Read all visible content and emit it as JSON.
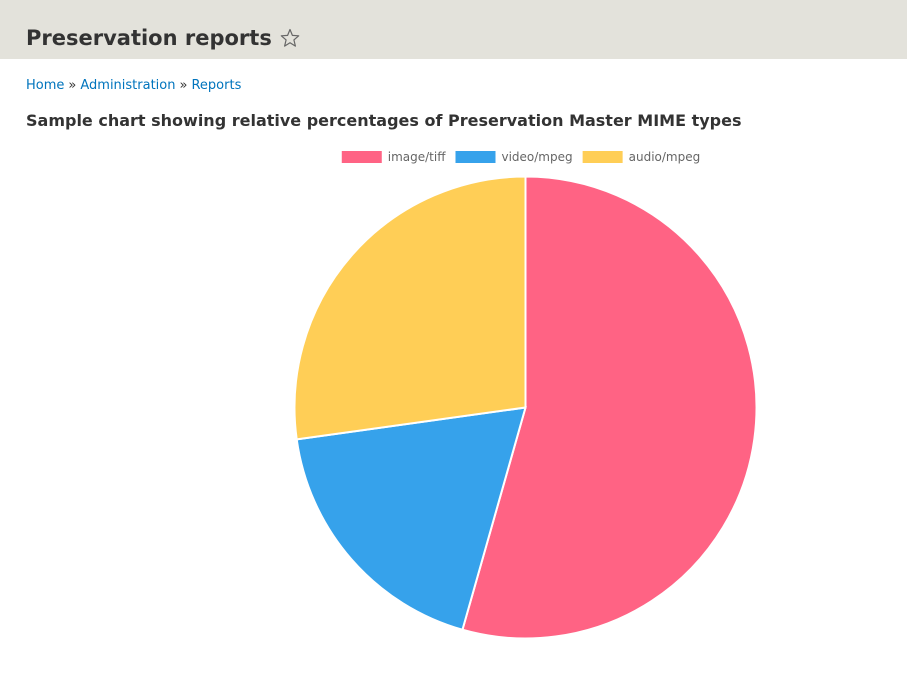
{
  "header": {
    "title": "Preservation reports",
    "star_icon": "star-outline-icon"
  },
  "breadcrumb": {
    "items": [
      "Home",
      "Administration",
      "Reports"
    ],
    "separator": "»"
  },
  "main": {
    "chart_heading": "Sample chart showing relative percentages of Preservation Master MIME types"
  },
  "chart_data": {
    "type": "pie",
    "title": "",
    "categories": [
      "image/tiff",
      "video/mpeg",
      "audio/mpeg"
    ],
    "values": [
      54.4,
      18.4,
      27.2
    ],
    "colors": [
      "#ff6384",
      "#36a2eb",
      "#ffce56"
    ],
    "legend": "top",
    "start_angle": "top, clockwise"
  }
}
